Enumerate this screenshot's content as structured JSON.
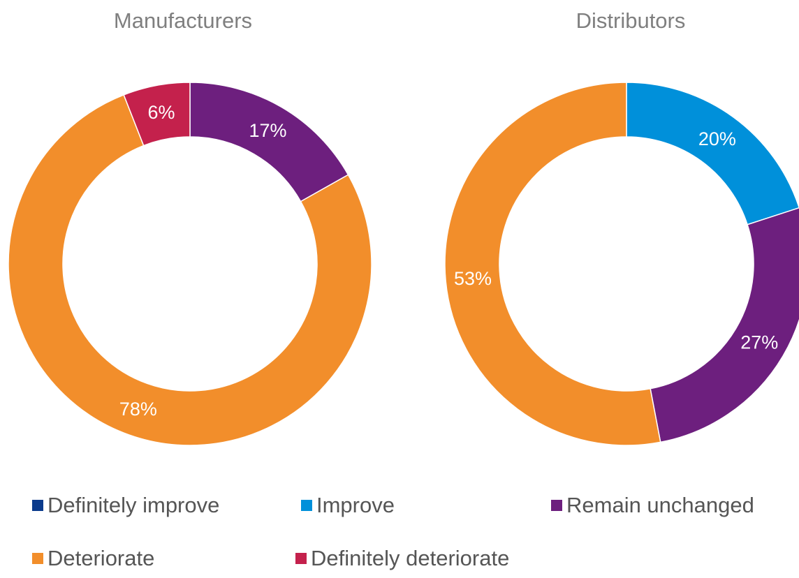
{
  "chart_data": [
    {
      "type": "pie",
      "title": "Manufacturers",
      "slices": [
        {
          "category": "Remain unchanged",
          "value": 17,
          "label": "17%"
        },
        {
          "category": "Deteriorate",
          "value": 78,
          "label": "78%"
        },
        {
          "category": "Definitely deteriorate",
          "value": 6,
          "label": "6%"
        }
      ]
    },
    {
      "type": "pie",
      "title": "Distributors",
      "slices": [
        {
          "category": "Improve",
          "value": 20,
          "label": "20%"
        },
        {
          "category": "Remain unchanged",
          "value": 27,
          "label": "27%"
        },
        {
          "category": "Deteriorate",
          "value": 53,
          "label": "53%"
        }
      ]
    }
  ],
  "legend": {
    "placement": "bottom",
    "items": [
      {
        "label": "Definitely improve",
        "color": "#0b3b8c"
      },
      {
        "label": "Improve",
        "color": "#0090da"
      },
      {
        "label": "Remain unchanged",
        "color": "#6d1f7e"
      },
      {
        "label": "Deteriorate",
        "color": "#f28e2b"
      },
      {
        "label": "Definitely deteriorate",
        "color": "#c4214c"
      }
    ]
  }
}
